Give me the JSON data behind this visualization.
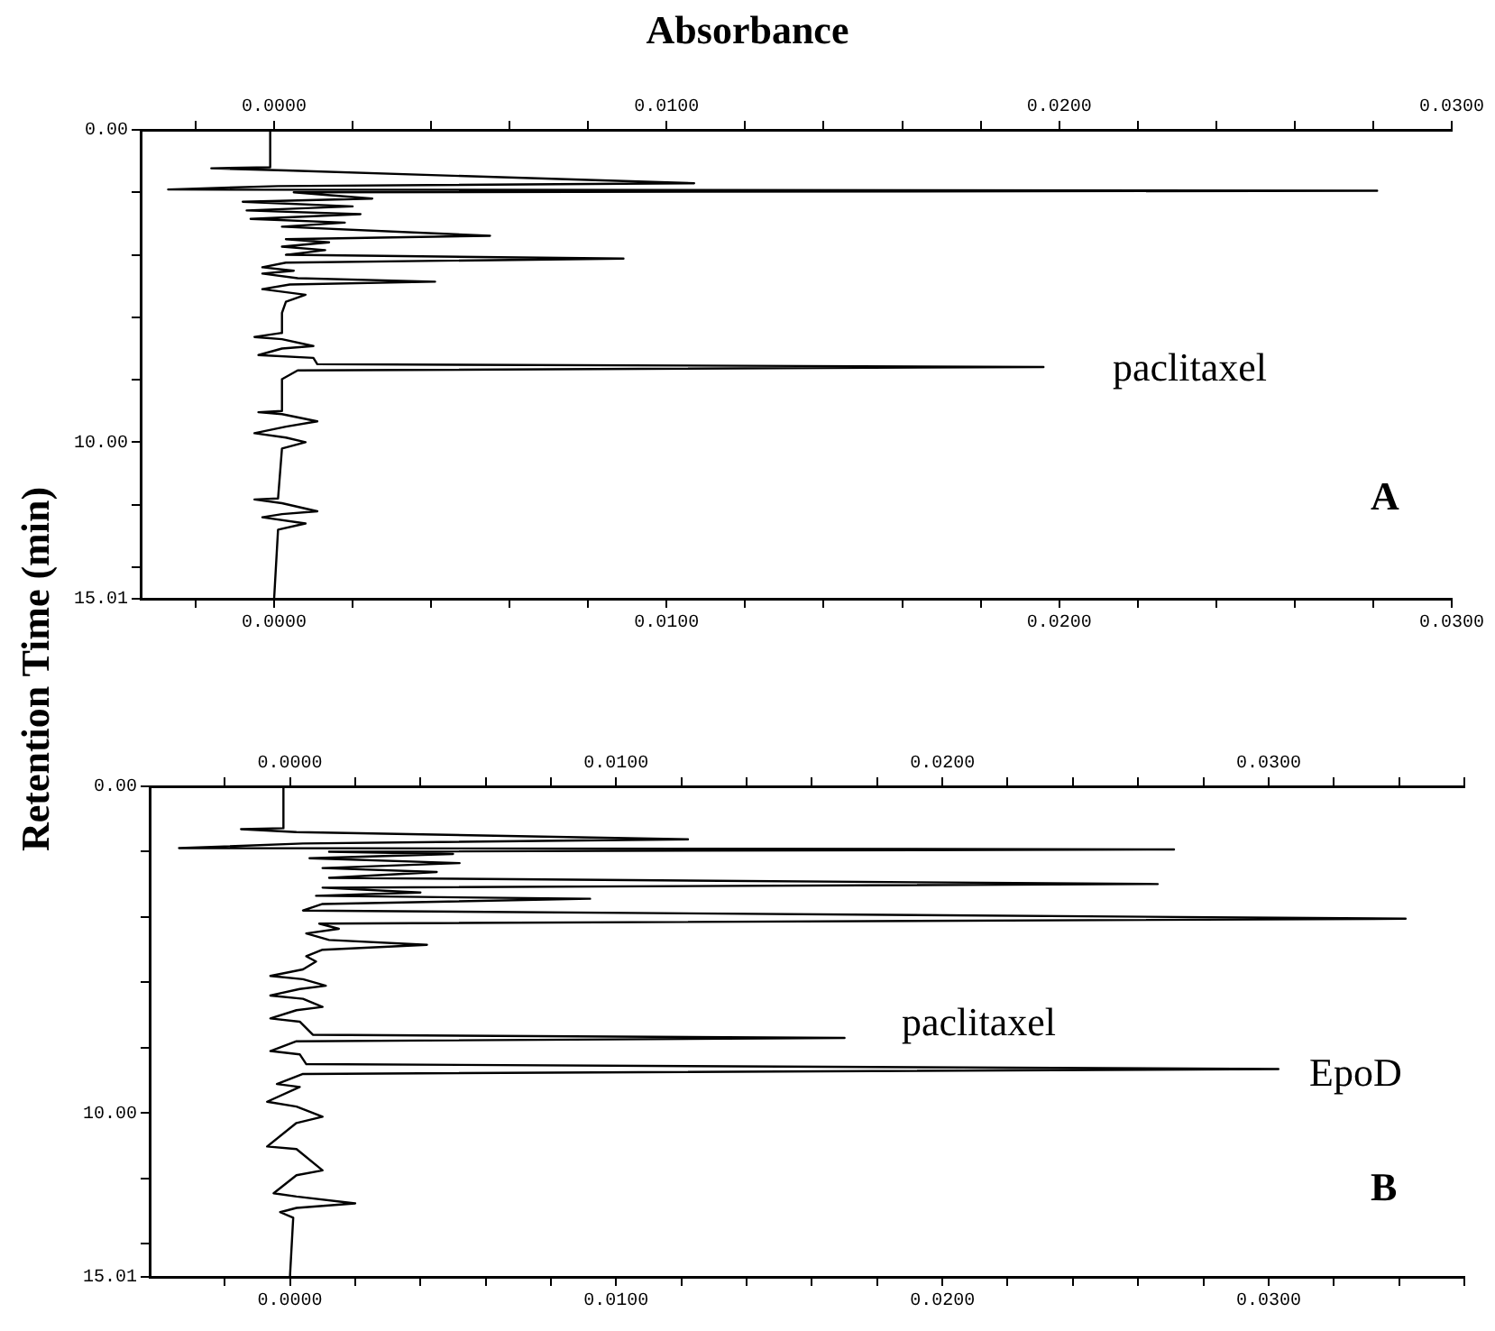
{
  "chart_data": [
    {
      "type": "line",
      "orientation": "horizontal",
      "xlabel": "Absorbance",
      "ylabel": "Retention Time (min)",
      "annotations": [
        "paclitaxel",
        "A"
      ],
      "series": [
        {
          "color": "#000000",
          "x": [
            0,
            1.2,
            1.23,
            1.3,
            1.71,
            1.8,
            1.91,
            1.95,
            2.0,
            2.2,
            2.3,
            2.45,
            2.58,
            2.7,
            2.85,
            2.97,
            3.1,
            3.39,
            3.5,
            3.6,
            3.74,
            3.85,
            4.0,
            4.12,
            4.25,
            4.4,
            4.51,
            4.6,
            4.75,
            4.86,
            4.95,
            5.1,
            5.28,
            5.5,
            5.86,
            6.5,
            6.63,
            6.7,
            6.92,
            7.0,
            7.21,
            7.3,
            7.5,
            7.59,
            7.7,
            7.98,
            9.0,
            9.04,
            9.1,
            9.33,
            9.5,
            9.71,
            9.85,
            10.0,
            10.2,
            11.8,
            11.83,
            11.95,
            12.21,
            12.3,
            12.4,
            12.6,
            12.8,
            15.01
          ],
          "values": [
            -0.0001,
            -0.0001,
            -0.0016,
            0.0003,
            0.0107,
            0.0001,
            -0.0027,
            0.0281,
            0.0005,
            0.0025,
            -0.0008,
            0.002,
            -0.0007,
            0.0022,
            -0.0006,
            0.0018,
            0.0002,
            0.0055,
            0.0003,
            0.0014,
            0.0002,
            0.0013,
            0.0003,
            0.0089,
            0.0003,
            -0.0003,
            0.0005,
            -0.0003,
            0.0006,
            0.0041,
            0.0004,
            -0.0003,
            0.0008,
            0.0003,
            0.0002,
            0.0002,
            -0.0005,
            0.0002,
            0.001,
            0.0002,
            -0.0004,
            0.001,
            0.0011,
            0.0196,
            0.0006,
            0.0002,
            0.0002,
            -0.0004,
            0.0002,
            0.0011,
            0.0003,
            -0.0005,
            0.0003,
            0.0008,
            0.0002,
            0.0001,
            -0.0005,
            0.0002,
            0.0011,
            0.0002,
            -0.0003,
            0.0008,
            0.0001,
            0
          ]
        }
      ],
      "xlim": [
        -0.0034,
        0.03
      ],
      "xticks": [
        {
          "value": -0.002,
          "label": null
        },
        {
          "value": 0,
          "label": "0.0000"
        },
        {
          "value": 0.002,
          "label": null
        },
        {
          "value": 0.004,
          "label": null
        },
        {
          "value": 0.006,
          "label": null
        },
        {
          "value": 0.008,
          "label": null
        },
        {
          "value": 0.01,
          "label": "0.0100"
        },
        {
          "value": 0.012,
          "label": null
        },
        {
          "value": 0.014,
          "label": null
        },
        {
          "value": 0.016,
          "label": null
        },
        {
          "value": 0.018,
          "label": null
        },
        {
          "value": 0.02,
          "label": "0.0200"
        },
        {
          "value": 0.022,
          "label": null
        },
        {
          "value": 0.024,
          "label": null
        },
        {
          "value": 0.026,
          "label": null
        },
        {
          "value": 0.028,
          "label": null
        },
        {
          "value": 0.03,
          "label": "0.0300"
        }
      ],
      "x2lim": [
        -0.0034,
        0.03
      ],
      "x2ticks": [
        {
          "value": -0.002,
          "label": null
        },
        {
          "value": 0,
          "label": "0.0000"
        },
        {
          "value": 0.002,
          "label": null
        },
        {
          "value": 0.004,
          "label": null
        },
        {
          "value": 0.006,
          "label": null
        },
        {
          "value": 0.008,
          "label": null
        },
        {
          "value": 0.01,
          "label": "0.0100"
        },
        {
          "value": 0.012,
          "label": null
        },
        {
          "value": 0.014,
          "label": null
        },
        {
          "value": 0.016,
          "label": null
        },
        {
          "value": 0.018,
          "label": null
        },
        {
          "value": 0.02,
          "label": "0.0200"
        },
        {
          "value": 0.022,
          "label": null
        },
        {
          "value": 0.024,
          "label": null
        },
        {
          "value": 0.026,
          "label": null
        },
        {
          "value": 0.028,
          "label": null
        },
        {
          "value": 0.03,
          "label": "0.0300"
        }
      ],
      "ylim": [
        15.01,
        0
      ],
      "yticks": [
        {
          "value": 0,
          "label": "0.00"
        },
        {
          "value": 2,
          "label": null
        },
        {
          "value": 4,
          "label": null
        },
        {
          "value": 6,
          "label": null
        },
        {
          "value": 8,
          "label": null
        },
        {
          "value": 10,
          "label": "10.00"
        },
        {
          "value": 12,
          "label": null
        },
        {
          "value": 14,
          "label": null
        },
        {
          "value": 15.01,
          "label": "15.01"
        }
      ],
      "grid": false,
      "legend": false,
      "marker": "none",
      "line_style": "solid"
    },
    {
      "type": "line",
      "orientation": "horizontal",
      "annotations": [
        "paclitaxel",
        "EpoD",
        "B"
      ],
      "series": [
        {
          "color": "#000000",
          "x": [
            0,
            1.28,
            1.31,
            1.4,
            1.62,
            1.75,
            1.89,
            1.93,
            2.0,
            2.07,
            2.2,
            2.35,
            2.5,
            2.62,
            2.8,
            2.99,
            3.1,
            3.25,
            3.35,
            3.44,
            3.6,
            3.8,
            4.05,
            4.2,
            4.36,
            4.5,
            4.7,
            4.85,
            5.0,
            5.2,
            5.36,
            5.6,
            5.8,
            5.9,
            6.1,
            6.2,
            6.4,
            6.5,
            6.75,
            6.85,
            7.1,
            7.2,
            7.6,
            7.7,
            7.8,
            8.1,
            8.2,
            8.5,
            8.65,
            8.8,
            9.11,
            9.2,
            9.65,
            9.8,
            10.11,
            10.3,
            11.02,
            11.1,
            11.75,
            11.9,
            12.45,
            12.55,
            12.76,
            12.9,
            13.03,
            13.2,
            15.01
          ],
          "values": [
            -0.0002,
            -0.0002,
            -0.0015,
            0.0002,
            0.0122,
            0.0004,
            -0.0034,
            0.0271,
            0.0012,
            0.005,
            0.0006,
            0.0052,
            0.001,
            0.0045,
            0.0012,
            0.0266,
            0.001,
            0.004,
            0.0008,
            0.0092,
            0.001,
            0.0004,
            0.0342,
            0.0009,
            0.0015,
            0.0005,
            0.0012,
            0.0042,
            0.001,
            0.0005,
            0.0008,
            0.0004,
            -0.0006,
            0.0004,
            0.0011,
            0.0003,
            -0.0006,
            0.0004,
            0.001,
            0.0002,
            -0.0006,
            0.0003,
            0.0007,
            0.017,
            0.0002,
            -0.0006,
            0.0003,
            0.0005,
            0.0303,
            0.0004,
            -0.0004,
            0.0003,
            -0.0007,
            0.0002,
            0.001,
            0.0002,
            -0.0007,
            0.0002,
            0.001,
            0.0002,
            -0.0005,
            0.0002,
            0.002,
            0.0002,
            -0.0003,
            0.0001,
            0
          ]
        }
      ],
      "xlim": [
        -0.0043,
        0.036
      ],
      "xticks": [
        {
          "value": -0.002,
          "label": null
        },
        {
          "value": 0,
          "label": "0.0000"
        },
        {
          "value": 0.002,
          "label": null
        },
        {
          "value": 0.004,
          "label": null
        },
        {
          "value": 0.006,
          "label": null
        },
        {
          "value": 0.008,
          "label": null
        },
        {
          "value": 0.01,
          "label": "0.0100"
        },
        {
          "value": 0.012,
          "label": null
        },
        {
          "value": 0.014,
          "label": null
        },
        {
          "value": 0.016,
          "label": null
        },
        {
          "value": 0.018,
          "label": null
        },
        {
          "value": 0.02,
          "label": "0.0200"
        },
        {
          "value": 0.022,
          "label": null
        },
        {
          "value": 0.024,
          "label": null
        },
        {
          "value": 0.026,
          "label": null
        },
        {
          "value": 0.028,
          "label": null
        },
        {
          "value": 0.03,
          "label": "0.0300"
        },
        {
          "value": 0.032,
          "label": null
        },
        {
          "value": 0.034,
          "label": null
        },
        {
          "value": 0.036,
          "label": null
        }
      ],
      "x2lim": [
        -0.0043,
        0.036
      ],
      "x2ticks": [
        {
          "value": -0.002,
          "label": null
        },
        {
          "value": 0,
          "label": "0.0000"
        },
        {
          "value": 0.002,
          "label": null
        },
        {
          "value": 0.004,
          "label": null
        },
        {
          "value": 0.006,
          "label": null
        },
        {
          "value": 0.008,
          "label": null
        },
        {
          "value": 0.01,
          "label": "0.0100"
        },
        {
          "value": 0.012,
          "label": null
        },
        {
          "value": 0.014,
          "label": null
        },
        {
          "value": 0.016,
          "label": null
        },
        {
          "value": 0.018,
          "label": null
        },
        {
          "value": 0.02,
          "label": "0.0200"
        },
        {
          "value": 0.022,
          "label": null
        },
        {
          "value": 0.024,
          "label": null
        },
        {
          "value": 0.026,
          "label": null
        },
        {
          "value": 0.028,
          "label": null
        },
        {
          "value": 0.03,
          "label": "0.0300"
        },
        {
          "value": 0.032,
          "label": null
        },
        {
          "value": 0.034,
          "label": null
        },
        {
          "value": 0.036,
          "label": null
        }
      ],
      "ylim": [
        15.01,
        0
      ],
      "yticks": [
        {
          "value": 0,
          "label": "0.00"
        },
        {
          "value": 2,
          "label": null
        },
        {
          "value": 4,
          "label": null
        },
        {
          "value": 6,
          "label": null
        },
        {
          "value": 8,
          "label": null
        },
        {
          "value": 10,
          "label": "10.00"
        },
        {
          "value": 12,
          "label": null
        },
        {
          "value": 14,
          "label": null
        },
        {
          "value": 15.01,
          "label": "15.01"
        }
      ],
      "grid": false,
      "legend": false,
      "marker": "none",
      "line_style": "solid"
    }
  ]
}
